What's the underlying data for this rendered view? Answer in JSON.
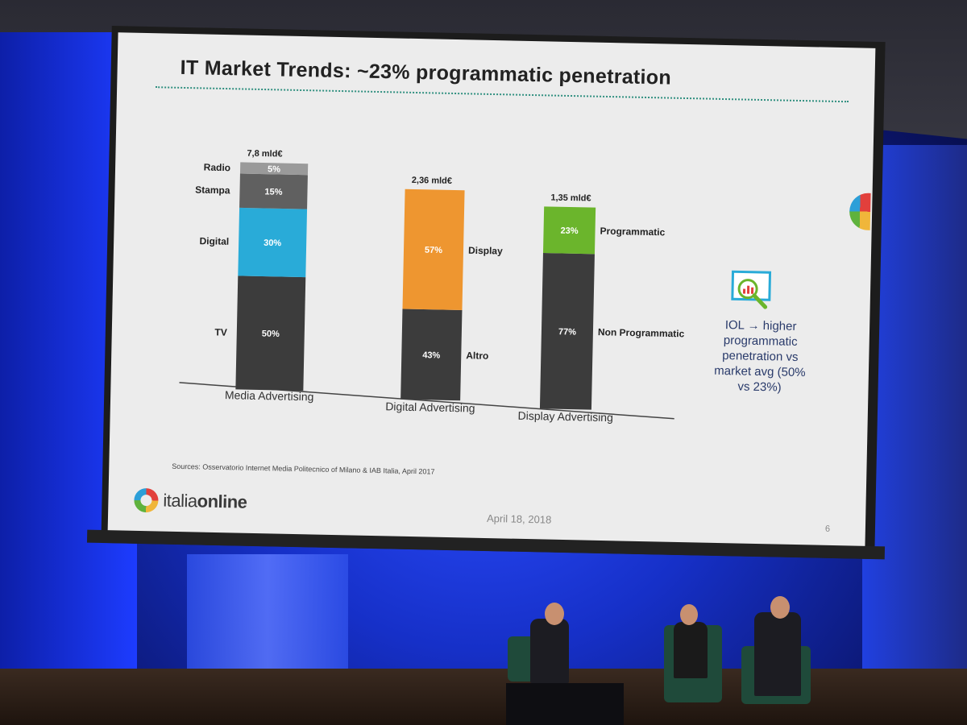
{
  "slide": {
    "title": "IT Market Trends: ~23% programmatic penetration",
    "sources": "Sources: Osservatorio Internet Media Politecnico of Milano & IAB Italia, April 2017",
    "brand_prefix": "italia",
    "brand_suffix": "online",
    "date": "April 18, 2018",
    "page_number": "6",
    "iol_note": "IOL → higher programmatic penetration vs market avg (50% vs 23%)",
    "icon": "magnifier-chart-icon"
  },
  "colors": {
    "slide_bg": "#ececec",
    "dark_segment": "#3c3c3c",
    "stampa_segment": "#606060",
    "radio_segment": "#9a9a9a",
    "digital_segment": "#29abd8",
    "display_segment": "#ee9630",
    "programmatic_segment": "#6bb52c"
  },
  "chart_data": {
    "type": "bar",
    "stacked": true,
    "unit": "%",
    "bars": [
      {
        "category": "Media Advertising",
        "total_label": "7,8 mld€",
        "segments": [
          {
            "name": "TV",
            "value": 50,
            "label": "50%"
          },
          {
            "name": "Digital",
            "value": 30,
            "label": "30%"
          },
          {
            "name": "Stampa",
            "value": 15,
            "label": "15%"
          },
          {
            "name": "Radio",
            "value": 5,
            "label": "5%"
          }
        ]
      },
      {
        "category": "Digital Advertising",
        "total_label": "2,36 mld€",
        "segments": [
          {
            "name": "Altro",
            "value": 43,
            "label": "43%"
          },
          {
            "name": "Display",
            "value": 57,
            "label": "57%"
          }
        ]
      },
      {
        "category": "Display Advertising",
        "total_label": "1,35 mld€",
        "segments": [
          {
            "name": "Non Programmatic",
            "value": 77,
            "label": "77%"
          },
          {
            "name": "Programmatic",
            "value": 23,
            "label": "23%"
          }
        ]
      }
    ]
  }
}
